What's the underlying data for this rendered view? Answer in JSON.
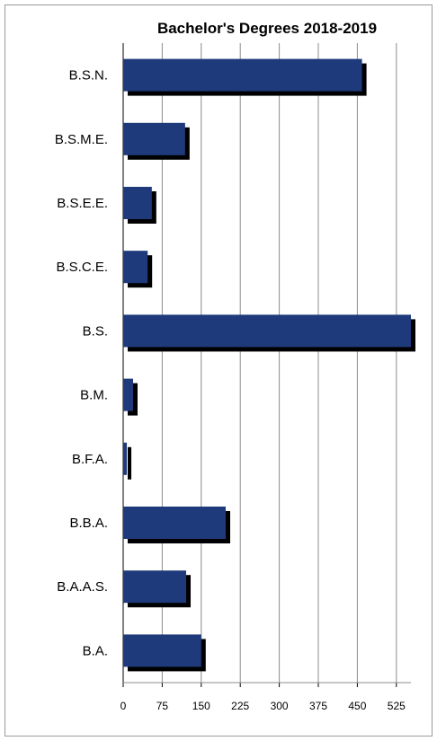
{
  "chart_data": {
    "type": "bar",
    "orientation": "horizontal",
    "title": "Bachelor's Degrees 2018-2019",
    "xlabel": "",
    "ylabel": "",
    "categories": [
      "B.S.N.",
      "B.S.M.E.",
      "B.S.E.E.",
      "B.S.C.E.",
      "B.S.",
      "B.M.",
      "B.F.A.",
      "B.B.A.",
      "B.A.A.S.",
      "B.A."
    ],
    "values": [
      459,
      119,
      55,
      47,
      560,
      19,
      7,
      197,
      121,
      150
    ],
    "xlim": [
      0,
      553
    ],
    "xticks": [
      0,
      75,
      150,
      225,
      300,
      375,
      450,
      525
    ],
    "grid": true,
    "legend": "none",
    "bar_color": "#1f3a7a",
    "shadow_color": "#000000"
  }
}
